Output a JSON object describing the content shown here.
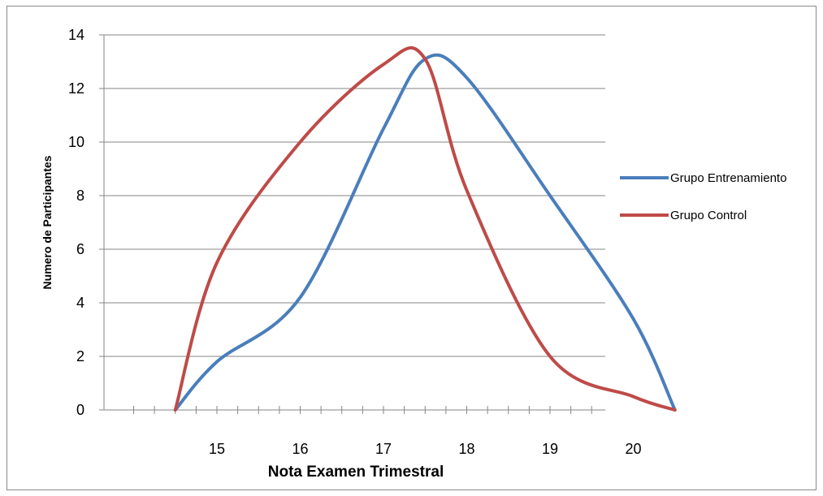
{
  "chart_data": {
    "type": "line",
    "title": "",
    "xlabel": "Nota Examen Trimestral",
    "ylabel": "Numero de Participantes",
    "x_tick_labels": [
      "15",
      "16",
      "17",
      "18",
      "19",
      "20"
    ],
    "ylim": [
      0,
      14
    ],
    "y_ticks": [
      0,
      2,
      4,
      6,
      8,
      10,
      12,
      14
    ],
    "grid": true,
    "legend_position": "right",
    "x": [
      14.5,
      15,
      16,
      17,
      17.5,
      18,
      19,
      20,
      20.5
    ],
    "series": [
      {
        "name": "Grupo Entrenamiento",
        "color": "#4a7ebb",
        "values": [
          0,
          1.8,
          4.2,
          10.5,
          13.1,
          12.4,
          8,
          3.4,
          0
        ]
      },
      {
        "name": "Grupo Control",
        "color": "#be4b48",
        "values": [
          0,
          5.5,
          10,
          12.9,
          13.1,
          8.2,
          2,
          0.5,
          0
        ]
      }
    ]
  }
}
